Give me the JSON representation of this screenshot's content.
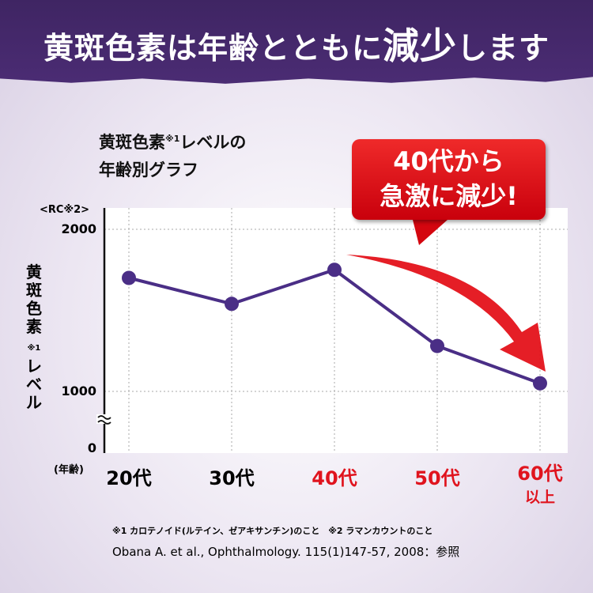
{
  "banner": {
    "title_pre": "黄斑色素は年齢とともに",
    "title_big": "減少",
    "title_post": "します"
  },
  "chart_title": {
    "line1": "黄斑色素",
    "sup": "※1",
    "line1b": "レベルの",
    "line2": "年齢別グラフ"
  },
  "callout": {
    "line1": "40代から",
    "line2": "急激に減少!"
  },
  "footnotes": {
    "note1": "※1 カロテノイド(ルテイン、ゼアキサンチン)のこと　※2 ラマンカウントのこと",
    "note2": "Obana A. et al., Ophthalmology. 115(1)147-57, 2008：参照"
  },
  "chart_data": {
    "type": "line",
    "ylabel": "黄斑色素※1レベル",
    "yunit": "<RC※2>",
    "xunit": "(年齢)",
    "categories": [
      "20代",
      "30代",
      "40代",
      "50代",
      "60代以上"
    ],
    "category_colors": [
      "#111111",
      "#111111",
      "#e0141e",
      "#e0141e",
      "#e0141e"
    ],
    "values": [
      1700,
      1540,
      1750,
      1280,
      1050
    ],
    "yticks": [
      "2000",
      "1000",
      "0"
    ],
    "ylim": [
      0,
      2000
    ],
    "axis_break": true,
    "grid": true,
    "line_color": "#4a2e86"
  }
}
